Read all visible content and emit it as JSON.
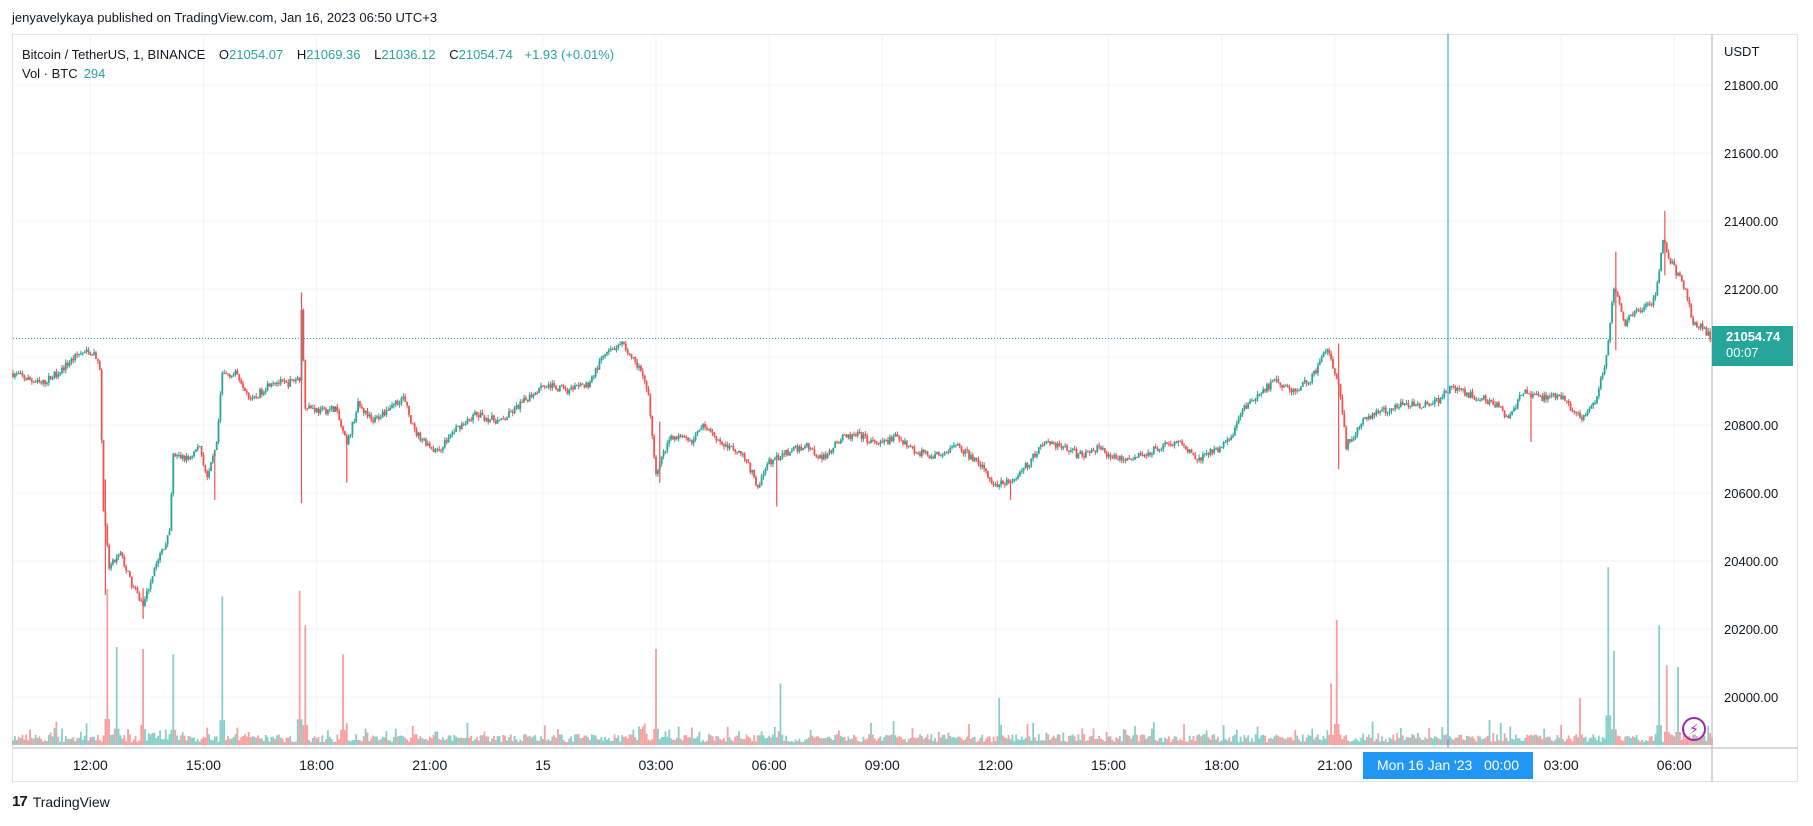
{
  "header": {
    "publish_line": "jenyavelykaya published on TradingView.com, Jan 16, 2023 06:50 UTC+3"
  },
  "legend": {
    "symbol": "Bitcoin / TetherUS, 1, BINANCE",
    "open_label": "O",
    "open": "21054.07",
    "high_label": "H",
    "high": "21069.36",
    "low_label": "L",
    "low": "21036.12",
    "close_label": "C",
    "close": "21054.74",
    "change": "+1.93 (+0.01%)",
    "volume_label": "Vol · BTC",
    "volume": "294"
  },
  "price_badge": {
    "price": "21054.74",
    "countdown": "00:07"
  },
  "crosshair_label": "Mon 16 Jan '23   00:00",
  "branding": {
    "name": "TradingView",
    "logo_glyph": "17"
  },
  "colors": {
    "up": "#26a69a",
    "down": "#ef5350",
    "crosshair": "#2196f3",
    "grid": "#f0f3fa",
    "badge": "#26a69a"
  },
  "chart_data": {
    "type": "candlestick",
    "symbol": "BTCUSDT",
    "exchange": "BINANCE",
    "interval": "1",
    "currency_label": "USDT",
    "ylim": [
      19850,
      21950
    ],
    "y_ticks": [
      20000,
      20200,
      20400,
      20600,
      20800,
      21000,
      21200,
      21400,
      21600,
      21800
    ],
    "y_tick_labels": [
      "20000.00",
      "20200.00",
      "20400.00",
      "20600.00",
      "20800.00",
      "21000.00",
      "21200.00",
      "21400.00",
      "21600.00",
      "21800.00"
    ],
    "x_ticks": [
      {
        "h": 0,
        "label": "12:00"
      },
      {
        "h": 3,
        "label": "15:00"
      },
      {
        "h": 6,
        "label": "18:00"
      },
      {
        "h": 9,
        "label": "21:00"
      },
      {
        "h": 12,
        "label": "15"
      },
      {
        "h": 15,
        "label": "03:00"
      },
      {
        "h": 18,
        "label": "06:00"
      },
      {
        "h": 21,
        "label": "09:00"
      },
      {
        "h": 24,
        "label": "12:00"
      },
      {
        "h": 27,
        "label": "15:00"
      },
      {
        "h": 30,
        "label": "18:00"
      },
      {
        "h": 33,
        "label": "21:00"
      },
      {
        "h": 39,
        "label": "03:00"
      },
      {
        "h": 42,
        "label": "06:00"
      }
    ],
    "crosshair_h": 36,
    "x_range_h": [
      -2.05,
      43.0
    ],
    "last_price": 21054.74,
    "price_path": [
      [
        -2.0,
        20950
      ],
      [
        -1.3,
        20920
      ],
      [
        -0.8,
        20960
      ],
      [
        -0.3,
        21010
      ],
      [
        0.1,
        21015
      ],
      [
        0.25,
        20960
      ],
      [
        0.35,
        20550
      ],
      [
        0.5,
        20380
      ],
      [
        0.8,
        20420
      ],
      [
        1.1,
        20330
      ],
      [
        1.4,
        20270
      ],
      [
        1.7,
        20380
      ],
      [
        2.1,
        20480
      ],
      [
        2.2,
        20710
      ],
      [
        2.6,
        20700
      ],
      [
        2.9,
        20740
      ],
      [
        3.1,
        20640
      ],
      [
        3.35,
        20740
      ],
      [
        3.5,
        20950
      ],
      [
        3.9,
        20950
      ],
      [
        4.3,
        20870
      ],
      [
        4.8,
        20930
      ],
      [
        5.2,
        20920
      ],
      [
        5.55,
        20940
      ],
      [
        5.6,
        21130
      ],
      [
        5.7,
        20860
      ],
      [
        6.1,
        20840
      ],
      [
        6.5,
        20850
      ],
      [
        6.8,
        20740
      ],
      [
        7.1,
        20860
      ],
      [
        7.5,
        20810
      ],
      [
        8.0,
        20860
      ],
      [
        8.3,
        20880
      ],
      [
        8.6,
        20780
      ],
      [
        9.2,
        20720
      ],
      [
        9.7,
        20790
      ],
      [
        10.2,
        20830
      ],
      [
        10.9,
        20810
      ],
      [
        11.5,
        20870
      ],
      [
        12.0,
        20920
      ],
      [
        12.7,
        20900
      ],
      [
        13.2,
        20920
      ],
      [
        13.6,
        21000
      ],
      [
        14.1,
        21040
      ],
      [
        14.6,
        20960
      ],
      [
        14.8,
        20880
      ],
      [
        15.0,
        20660
      ],
      [
        15.4,
        20770
      ],
      [
        15.9,
        20750
      ],
      [
        16.3,
        20800
      ],
      [
        16.8,
        20740
      ],
      [
        17.3,
        20720
      ],
      [
        17.7,
        20620
      ],
      [
        18.0,
        20690
      ],
      [
        18.5,
        20720
      ],
      [
        19.0,
        20740
      ],
      [
        19.4,
        20700
      ],
      [
        19.9,
        20760
      ],
      [
        20.4,
        20770
      ],
      [
        20.9,
        20740
      ],
      [
        21.4,
        20770
      ],
      [
        21.9,
        20720
      ],
      [
        22.4,
        20710
      ],
      [
        23.0,
        20740
      ],
      [
        23.6,
        20680
      ],
      [
        24.0,
        20620
      ],
      [
        24.5,
        20640
      ],
      [
        24.9,
        20690
      ],
      [
        25.3,
        20750
      ],
      [
        25.8,
        20740
      ],
      [
        26.2,
        20710
      ],
      [
        26.7,
        20730
      ],
      [
        27.3,
        20700
      ],
      [
        27.9,
        20710
      ],
      [
        28.4,
        20740
      ],
      [
        28.9,
        20750
      ],
      [
        29.4,
        20700
      ],
      [
        29.9,
        20730
      ],
      [
        30.3,
        20770
      ],
      [
        30.5,
        20840
      ],
      [
        31.0,
        20890
      ],
      [
        31.4,
        20930
      ],
      [
        31.9,
        20900
      ],
      [
        32.4,
        20940
      ],
      [
        32.8,
        21030
      ],
      [
        33.1,
        20920
      ],
      [
        33.3,
        20740
      ],
      [
        33.8,
        20820
      ],
      [
        34.3,
        20840
      ],
      [
        34.7,
        20860
      ],
      [
        35.2,
        20860
      ],
      [
        35.7,
        20870
      ],
      [
        36.1,
        20910
      ],
      [
        36.5,
        20890
      ],
      [
        36.9,
        20880
      ],
      [
        37.3,
        20860
      ],
      [
        37.6,
        20820
      ],
      [
        38.0,
        20900
      ],
      [
        38.5,
        20880
      ],
      [
        38.9,
        20890
      ],
      [
        39.2,
        20860
      ],
      [
        39.5,
        20820
      ],
      [
        39.9,
        20870
      ],
      [
        40.2,
        21000
      ],
      [
        40.4,
        21200
      ],
      [
        40.7,
        21100
      ],
      [
        41.1,
        21140
      ],
      [
        41.5,
        21170
      ],
      [
        41.7,
        21340
      ],
      [
        42.0,
        21260
      ],
      [
        42.3,
        21200
      ],
      [
        42.5,
        21100
      ],
      [
        42.8,
        21080
      ],
      [
        43.0,
        21055
      ]
    ],
    "spikes": [
      {
        "h": 5.6,
        "high": 21190,
        "low": 20570
      },
      {
        "h": 0.4,
        "high": 20640,
        "low": 20300
      },
      {
        "h": 1.4,
        "high": 20320,
        "low": 20230
      },
      {
        "h": 15.1,
        "high": 20810,
        "low": 20630
      },
      {
        "h": 33.1,
        "high": 21040,
        "low": 20670
      },
      {
        "h": 41.75,
        "high": 21430,
        "low": 21240
      },
      {
        "h": 40.45,
        "high": 21310,
        "low": 21020
      },
      {
        "h": 38.2,
        "high": 20900,
        "low": 20750
      },
      {
        "h": 18.2,
        "high": 20700,
        "low": 20560
      },
      {
        "h": 24.4,
        "high": 20640,
        "low": 20580
      },
      {
        "h": 3.3,
        "high": 20720,
        "low": 20580
      },
      {
        "h": 6.8,
        "high": 20760,
        "low": 20630
      }
    ],
    "volume_peaks": [
      {
        "h": 0.45,
        "v": 430
      },
      {
        "h": 0.7,
        "v": 270
      },
      {
        "h": 1.4,
        "v": 265
      },
      {
        "h": 2.2,
        "v": 250
      },
      {
        "h": 3.5,
        "v": 410
      },
      {
        "h": 5.55,
        "v": 425
      },
      {
        "h": 5.7,
        "v": 330
      },
      {
        "h": 6.7,
        "v": 250
      },
      {
        "h": 15.0,
        "v": 265
      },
      {
        "h": 18.3,
        "v": 170
      },
      {
        "h": 24.1,
        "v": 130
      },
      {
        "h": 32.9,
        "v": 170
      },
      {
        "h": 33.05,
        "v": 345
      },
      {
        "h": 39.5,
        "v": 130
      },
      {
        "h": 40.25,
        "v": 490
      },
      {
        "h": 40.4,
        "v": 260
      },
      {
        "h": 41.6,
        "v": 330
      },
      {
        "h": 41.8,
        "v": 220
      },
      {
        "h": 42.1,
        "v": 215
      }
    ],
    "volume_max": 510
  }
}
